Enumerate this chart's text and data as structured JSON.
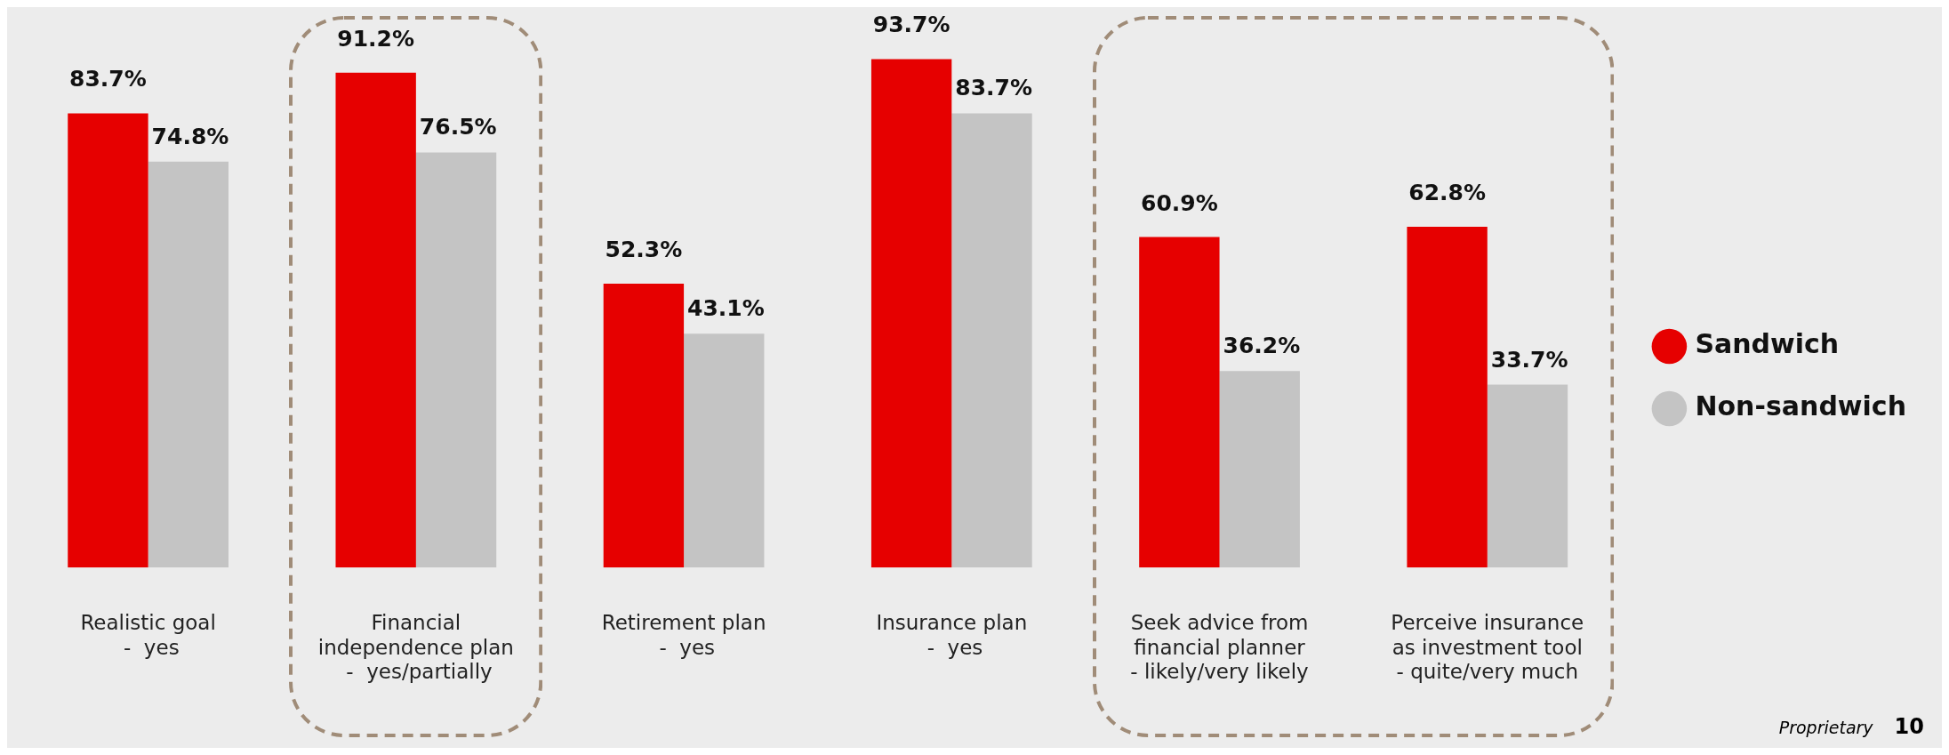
{
  "chart_data": {
    "type": "bar",
    "categories": [
      "Realistic goal\n -  yes",
      "Financial\nindependence plan\n -  yes/partially",
      "Retirement plan\n -  yes",
      "Insurance plan\n -  yes",
      "Seek advice from\nfinancial planner\n- likely/very likely",
      "Perceive insurance\nas investment tool\n- quite/very much"
    ],
    "series": [
      {
        "name": "Sandwich",
        "color": "#e60000",
        "values": [
          83.7,
          91.2,
          52.3,
          93.7,
          60.9,
          62.8
        ],
        "value_labels": [
          "83.7%",
          "91.2%",
          "52.3%",
          "93.7%",
          "60.9%",
          "62.8%"
        ]
      },
      {
        "name": "Non-sandwich",
        "color": "#c4c4c4",
        "values": [
          74.8,
          76.5,
          43.1,
          83.7,
          36.2,
          33.7
        ],
        "value_labels": [
          "74.8%",
          "76.5%",
          "43.1%",
          "83.7%",
          "36.2%",
          "33.7%"
        ]
      }
    ],
    "legend": "right",
    "grid": false,
    "annotations": [
      "Proprietary",
      "10"
    ]
  }
}
